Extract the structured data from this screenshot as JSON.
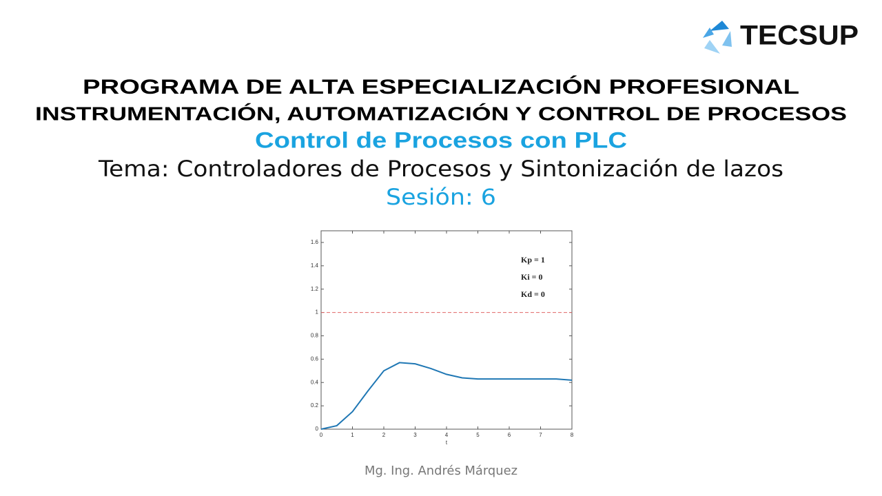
{
  "header": {
    "logo": "TECSUP",
    "title": "PROGRAMA DE ALTA ESPECIALIZACIÓN PROFESIONAL",
    "subtitle": "INSTRUMENTACIÓN, AUTOMATIZACIÓN Y CONTROL DE PROCESOS",
    "course": "Control de Procesos con PLC",
    "topic": "Tema: Controladores de Procesos y Sintonización de lazos",
    "session": "Sesión: 6"
  },
  "footer": {
    "author": "Mg. Ing. Andrés Márquez"
  },
  "chart_data": {
    "type": "line",
    "x_label": "t",
    "x": [
      0,
      0.5,
      1,
      1.5,
      2,
      2.5,
      3,
      3.5,
      4,
      4.5,
      5,
      5.5,
      6,
      6.5,
      7,
      7.5,
      8
    ],
    "series": [
      {
        "color": "#1f77b4",
        "values": [
          0,
          0.03,
          0.15,
          0.33,
          0.5,
          0.57,
          0.56,
          0.52,
          0.47,
          0.44,
          0.43,
          0.43,
          0.43,
          0.43,
          0.43,
          0.43,
          0.42
        ]
      }
    ],
    "reference_line": {
      "value": 1,
      "color": "#e06666"
    },
    "annotations": [
      "Kp = 1",
      "Ki = 0",
      "Kd = 0"
    ],
    "xlim": [
      0,
      8
    ],
    "xticks": [
      0,
      1,
      2,
      3,
      4,
      5,
      6,
      7,
      8
    ],
    "ylim": [
      0,
      1.7
    ],
    "yticks": [
      0,
      0.2,
      0.4,
      0.6,
      0.8,
      1,
      1.2,
      1.4,
      1.6
    ]
  }
}
